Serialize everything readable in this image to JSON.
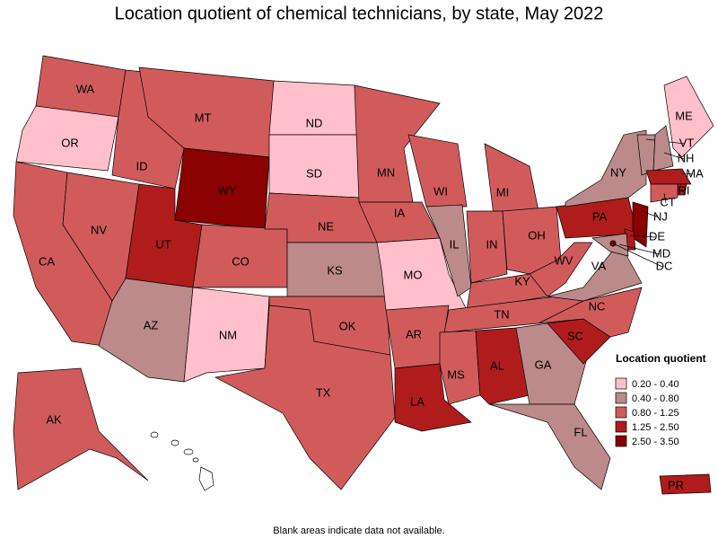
{
  "title": "Location quotient of chemical technicians, by state, May 2022",
  "note": "Blank areas indicate data not available.",
  "legend": {
    "title": "Location quotient",
    "classes": [
      {
        "label": "0.20 - 0.40",
        "color": "#ffc0cb"
      },
      {
        "label": "0.40 - 0.80",
        "color": "#bc8a8a"
      },
      {
        "label": "0.80 - 1.25",
        "color": "#d15b5b"
      },
      {
        "label": "1.25 - 2.50",
        "color": "#b01c1c"
      },
      {
        "label": "2.50 - 3.50",
        "color": "#8b0000"
      }
    ]
  },
  "states": [
    {
      "label": "WA",
      "class": 2
    },
    {
      "label": "OR",
      "class": 0
    },
    {
      "label": "CA",
      "class": 2
    },
    {
      "label": "NV",
      "class": 2
    },
    {
      "label": "ID",
      "class": 2
    },
    {
      "label": "MT",
      "class": 2
    },
    {
      "label": "WY",
      "class": 4
    },
    {
      "label": "UT",
      "class": 3
    },
    {
      "label": "CO",
      "class": 2
    },
    {
      "label": "AZ",
      "class": 1
    },
    {
      "label": "NM",
      "class": 0
    },
    {
      "label": "ND",
      "class": 0
    },
    {
      "label": "SD",
      "class": 0
    },
    {
      "label": "NE",
      "class": 2
    },
    {
      "label": "KS",
      "class": 1
    },
    {
      "label": "OK",
      "class": 2
    },
    {
      "label": "TX",
      "class": 2
    },
    {
      "label": "MN",
      "class": 2
    },
    {
      "label": "IA",
      "class": 2
    },
    {
      "label": "MO",
      "class": 0
    },
    {
      "label": "AR",
      "class": 2
    },
    {
      "label": "LA",
      "class": 3
    },
    {
      "label": "WI",
      "class": 2
    },
    {
      "label": "IL",
      "class": 1
    },
    {
      "label": "MI",
      "class": 2
    },
    {
      "label": "IN",
      "class": 2
    },
    {
      "label": "OH",
      "class": 2
    },
    {
      "label": "KY",
      "class": 2
    },
    {
      "label": "TN",
      "class": 2
    },
    {
      "label": "MS",
      "class": 2
    },
    {
      "label": "AL",
      "class": 3
    },
    {
      "label": "GA",
      "class": 1
    },
    {
      "label": "FL",
      "class": 1
    },
    {
      "label": "SC",
      "class": 3
    },
    {
      "label": "NC",
      "class": 2
    },
    {
      "label": "VA",
      "class": 1
    },
    {
      "label": "WV",
      "class": 2
    },
    {
      "label": "PA",
      "class": 3
    },
    {
      "label": "NY",
      "class": 1
    },
    {
      "label": "ME",
      "class": 0
    },
    {
      "label": "VT",
      "class": 1
    },
    {
      "label": "NH",
      "class": 1
    },
    {
      "label": "MA",
      "class": 3
    },
    {
      "label": "RI",
      "class": 3
    },
    {
      "label": "CT",
      "class": 2
    },
    {
      "label": "NJ",
      "class": 4
    },
    {
      "label": "DE",
      "class": 3
    },
    {
      "label": "MD",
      "class": 1
    },
    {
      "label": "DC",
      "class": 4
    },
    {
      "label": "AK",
      "class": 2
    },
    {
      "label": "PR",
      "class": 3
    }
  ]
}
